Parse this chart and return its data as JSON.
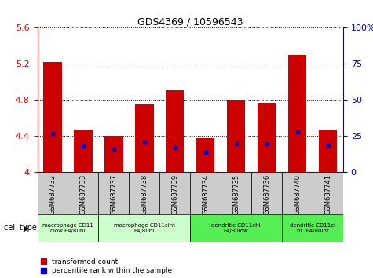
{
  "title": "GDS4369 / 10596543",
  "samples": [
    "GSM687732",
    "GSM687733",
    "GSM687737",
    "GSM687738",
    "GSM687739",
    "GSM687734",
    "GSM687735",
    "GSM687736",
    "GSM687740",
    "GSM687741"
  ],
  "transformed_count": [
    5.22,
    4.47,
    4.4,
    4.75,
    4.91,
    4.38,
    4.8,
    4.77,
    5.3,
    4.47
  ],
  "percentile_rank": [
    27,
    18,
    16,
    21,
    17,
    14,
    20,
    20,
    28,
    19
  ],
  "ylim_left": [
    4.0,
    5.6
  ],
  "ylim_right": [
    0,
    100
  ],
  "yticks_left": [
    4.0,
    4.4,
    4.8,
    5.2,
    5.6
  ],
  "yticks_right": [
    0,
    25,
    50,
    75,
    100
  ],
  "ytick_labels_left": [
    "4",
    "4.4",
    "4.8",
    "5.2",
    "5.6"
  ],
  "ytick_labels_right": [
    "0",
    "25",
    "50",
    "75",
    "100%"
  ],
  "bar_color": "#cc0000",
  "dot_color": "#0000cc",
  "cell_types": [
    {
      "label": "macrophage CD11\nclow F4/80hi",
      "start": 0,
      "end": 2,
      "color": "#ccffcc"
    },
    {
      "label": "macrophage CD11cint\nF4/80hi",
      "start": 2,
      "end": 5,
      "color": "#ccffcc"
    },
    {
      "label": "dendritic CD11chi\nF4/80low",
      "start": 5,
      "end": 8,
      "color": "#55ee55"
    },
    {
      "label": "dendritic CD11ci\nnt  F4/80int",
      "start": 8,
      "end": 10,
      "color": "#55ee55"
    }
  ],
  "grid_color": "black",
  "bg_color": "#ffffff",
  "xticklabel_bg": "#cccccc",
  "tick_label_color_left": "#cc0000",
  "tick_label_color_right": "#0000cc",
  "legend_red_label": "transformed count",
  "legend_blue_label": "percentile rank within the sample",
  "cell_type_label": "cell type"
}
